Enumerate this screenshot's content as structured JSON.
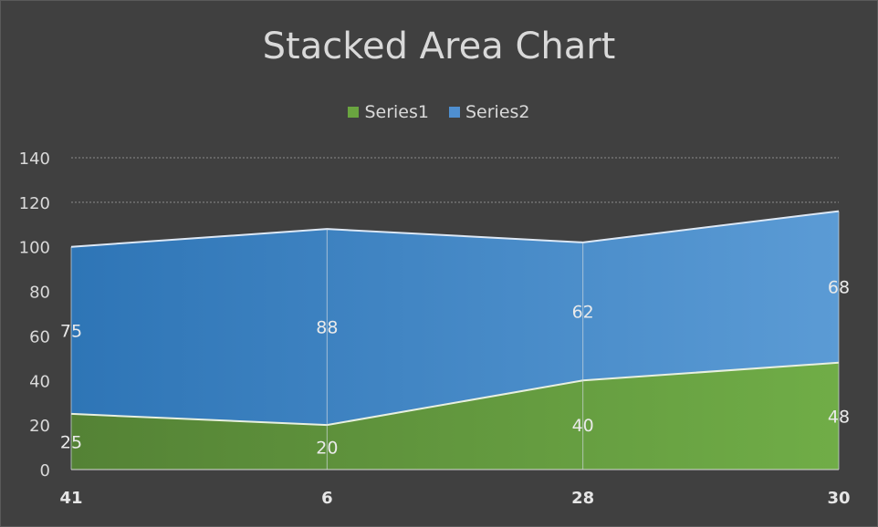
{
  "chart_data": {
    "type": "area",
    "stacked": true,
    "title": "Stacked Area Chart",
    "categories": [
      "41",
      "6",
      "28",
      "30"
    ],
    "series": [
      {
        "name": "Series1",
        "values": [
          25,
          20,
          40,
          48
        ],
        "color": "#6aa540"
      },
      {
        "name": "Series2",
        "values": [
          75,
          88,
          62,
          68
        ],
        "color": "#4f8fd0"
      }
    ],
    "ylim": [
      0,
      140
    ],
    "yticks": [
      0,
      20,
      40,
      60,
      80,
      100,
      120,
      140
    ],
    "legend_position": "top",
    "grid": true,
    "data_labels": true,
    "background": "#404040"
  }
}
